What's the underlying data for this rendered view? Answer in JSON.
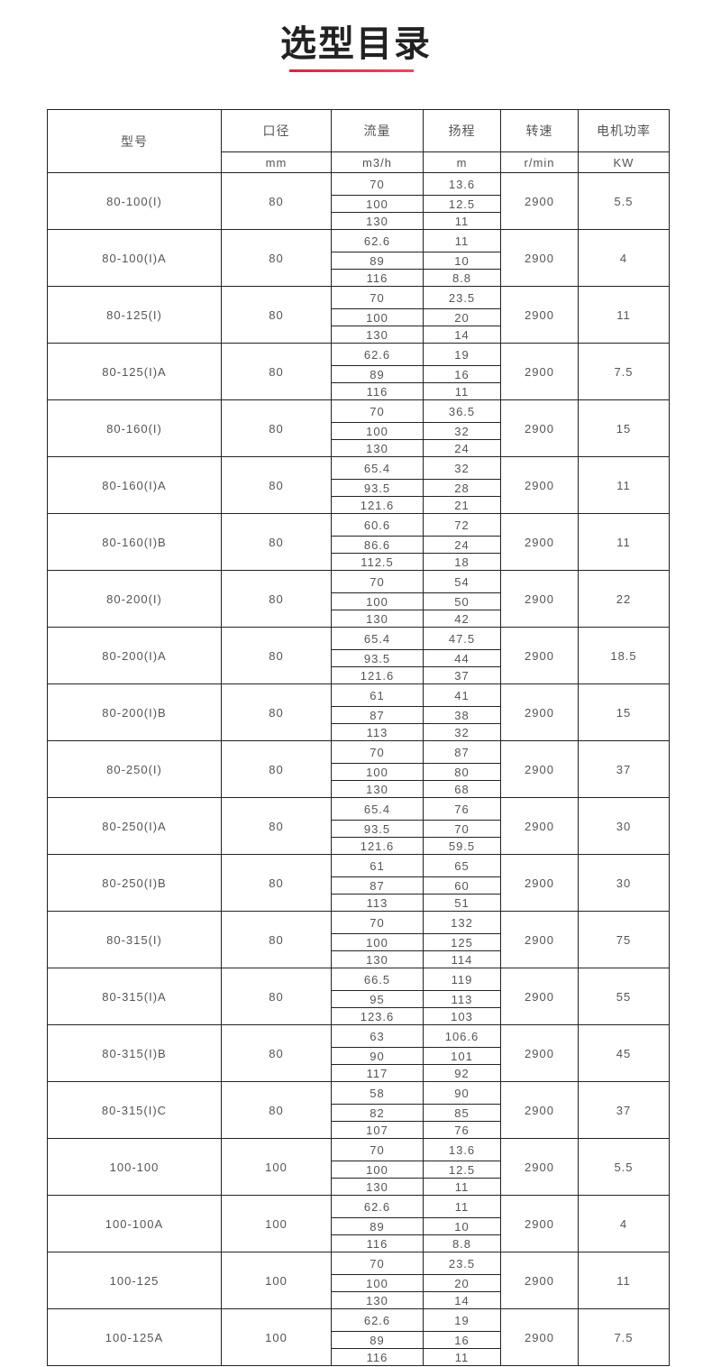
{
  "title": "选型目录",
  "colors": {
    "accent": "#e0304a",
    "border": "#222222",
    "text": "#555555"
  },
  "table": {
    "headers": [
      "型号",
      "口径",
      "流量",
      "扬程",
      "转速",
      "电机功率"
    ],
    "units": [
      "mm",
      "m3/h",
      "m",
      "r/min",
      "KW"
    ],
    "rows": [
      {
        "model": "80-100(I)",
        "caliber": "80",
        "flow": [
          "70",
          "100",
          "130"
        ],
        "head": [
          "13.6",
          "12.5",
          "11"
        ],
        "speed": "2900",
        "power": "5.5"
      },
      {
        "model": "80-100(I)A",
        "caliber": "80",
        "flow": [
          "62.6",
          "89",
          "116"
        ],
        "head": [
          "11",
          "10",
          "8.8"
        ],
        "speed": "2900",
        "power": "4"
      },
      {
        "model": "80-125(I)",
        "caliber": "80",
        "flow": [
          "70",
          "100",
          "130"
        ],
        "head": [
          "23.5",
          "20",
          "14"
        ],
        "speed": "2900",
        "power": "11"
      },
      {
        "model": "80-125(I)A",
        "caliber": "80",
        "flow": [
          "62.6",
          "89",
          "116"
        ],
        "head": [
          "19",
          "16",
          "11"
        ],
        "speed": "2900",
        "power": "7.5"
      },
      {
        "model": "80-160(I)",
        "caliber": "80",
        "flow": [
          "70",
          "100",
          "130"
        ],
        "head": [
          "36.5",
          "32",
          "24"
        ],
        "speed": "2900",
        "power": "15"
      },
      {
        "model": "80-160(I)A",
        "caliber": "80",
        "flow": [
          "65.4",
          "93.5",
          "121.6"
        ],
        "head": [
          "32",
          "28",
          "21"
        ],
        "speed": "2900",
        "power": "11"
      },
      {
        "model": "80-160(I)B",
        "caliber": "80",
        "flow": [
          "60.6",
          "86.6",
          "112.5"
        ],
        "head": [
          "72",
          "24",
          "18"
        ],
        "speed": "2900",
        "power": "11"
      },
      {
        "model": "80-200(I)",
        "caliber": "80",
        "flow": [
          "70",
          "100",
          "130"
        ],
        "head": [
          "54",
          "50",
          "42"
        ],
        "speed": "2900",
        "power": "22"
      },
      {
        "model": "80-200(I)A",
        "caliber": "80",
        "flow": [
          "65.4",
          "93.5",
          "121.6"
        ],
        "head": [
          "47.5",
          "44",
          "37"
        ],
        "speed": "2900",
        "power": "18.5"
      },
      {
        "model": "80-200(I)B",
        "caliber": "80",
        "flow": [
          "61",
          "87",
          "113"
        ],
        "head": [
          "41",
          "38",
          "32"
        ],
        "speed": "2900",
        "power": "15"
      },
      {
        "model": "80-250(I)",
        "caliber": "80",
        "flow": [
          "70",
          "100",
          "130"
        ],
        "head": [
          "87",
          "80",
          "68"
        ],
        "speed": "2900",
        "power": "37"
      },
      {
        "model": "80-250(I)A",
        "caliber": "80",
        "flow": [
          "65.4",
          "93.5",
          "121.6"
        ],
        "head": [
          "76",
          "70",
          "59.5"
        ],
        "speed": "2900",
        "power": "30"
      },
      {
        "model": "80-250(I)B",
        "caliber": "80",
        "flow": [
          "61",
          "87",
          "113"
        ],
        "head": [
          "65",
          "60",
          "51"
        ],
        "speed": "2900",
        "power": "30"
      },
      {
        "model": "80-315(I)",
        "caliber": "80",
        "flow": [
          "70",
          "100",
          "130"
        ],
        "head": [
          "132",
          "125",
          "114"
        ],
        "speed": "2900",
        "power": "75"
      },
      {
        "model": "80-315(I)A",
        "caliber": "80",
        "flow": [
          "66.5",
          "95",
          "123.6"
        ],
        "head": [
          "119",
          "113",
          "103"
        ],
        "speed": "2900",
        "power": "55"
      },
      {
        "model": "80-315(I)B",
        "caliber": "80",
        "flow": [
          "63",
          "90",
          "117"
        ],
        "head": [
          "106.6",
          "101",
          "92"
        ],
        "speed": "2900",
        "power": "45"
      },
      {
        "model": "80-315(I)C",
        "caliber": "80",
        "flow": [
          "58",
          "82",
          "107"
        ],
        "head": [
          "90",
          "85",
          "76"
        ],
        "speed": "2900",
        "power": "37"
      },
      {
        "model": "100-100",
        "caliber": "100",
        "flow": [
          "70",
          "100",
          "130"
        ],
        "head": [
          "13.6",
          "12.5",
          "11"
        ],
        "speed": "2900",
        "power": "5.5"
      },
      {
        "model": "100-100A",
        "caliber": "100",
        "flow": [
          "62.6",
          "89",
          "116"
        ],
        "head": [
          "11",
          "10",
          "8.8"
        ],
        "speed": "2900",
        "power": "4"
      },
      {
        "model": "100-125",
        "caliber": "100",
        "flow": [
          "70",
          "100",
          "130"
        ],
        "head": [
          "23.5",
          "20",
          "14"
        ],
        "speed": "2900",
        "power": "11"
      },
      {
        "model": "100-125A",
        "caliber": "100",
        "flow": [
          "62.6",
          "89",
          "116"
        ],
        "head": [
          "19",
          "16",
          "11"
        ],
        "speed": "2900",
        "power": "7.5"
      }
    ]
  }
}
